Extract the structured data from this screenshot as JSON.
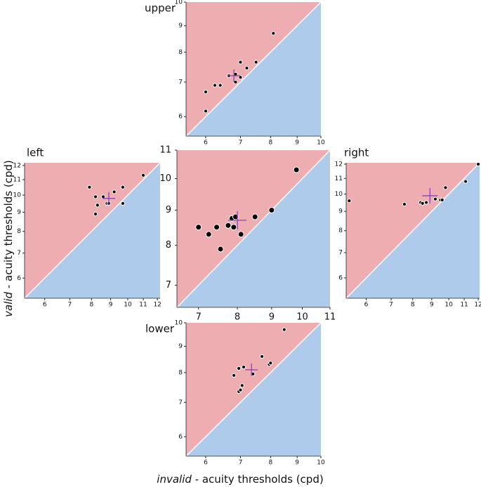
{
  "xlabel": {
    "emphasis": "invalid",
    "text": " - acuity thresholds (cpd)"
  },
  "ylabel": {
    "emphasis": "valid",
    "text": " - acuity thresholds (cpd)"
  },
  "chart_data": [
    {
      "type": "scatter",
      "title": "upper",
      "log_scale": true,
      "upper_color": "#eeadb0",
      "lower_color": "#aecbeb",
      "point_color": "#000000",
      "mean_color": "#8e44ad",
      "x": [
        6.0,
        6.0,
        6.25,
        6.4,
        6.65,
        6.85,
        6.85,
        7.0,
        7.2,
        7.0,
        7.5,
        8.1
      ],
      "y": [
        6.15,
        6.7,
        6.9,
        6.9,
        7.2,
        7.0,
        7.25,
        7.15,
        7.45,
        7.65,
        7.65,
        8.7
      ],
      "mean": {
        "x": 6.8,
        "y": 7.2
      },
      "xlim": [
        5.5,
        10
      ],
      "ylim": [
        5.5,
        10
      ],
      "xticks": [
        6,
        7,
        8,
        9,
        10
      ],
      "yticks": [
        6,
        7,
        8,
        9,
        10
      ]
    },
    {
      "type": "scatter",
      "title": "left",
      "log_scale": true,
      "upper_color": "#eeadb0",
      "lower_color": "#aecbeb",
      "point_color": "#000000",
      "mean_color": "#8e44ad",
      "x": [
        7.9,
        8.2,
        8.3,
        8.2,
        8.6,
        8.8,
        8.9,
        9.2,
        9.7,
        9.7,
        11.0
      ],
      "y": [
        10.5,
        9.9,
        9.4,
        8.9,
        9.9,
        9.5,
        9.5,
        10.2,
        10.5,
        9.5,
        11.3
      ],
      "mean": {
        "x": 8.9,
        "y": 9.8
      },
      "xlim": [
        5.3,
        12.2
      ],
      "ylim": [
        5.3,
        12.2
      ],
      "xticks": [
        6,
        7,
        8,
        9,
        10,
        11,
        12
      ],
      "yticks": [
        6,
        7,
        8,
        9,
        10,
        11,
        12
      ]
    },
    {
      "type": "scatter",
      "log_scale": true,
      "upper_color": "#eeadb0",
      "lower_color": "#aecbeb",
      "point_color": "#000000",
      "mean_color": "#8e44ad",
      "x": [
        7.0,
        7.25,
        7.55,
        7.45,
        7.75,
        7.85,
        7.9,
        7.95,
        8.1,
        8.5,
        9.0,
        9.8
      ],
      "y": [
        8.5,
        8.3,
        7.9,
        8.5,
        8.55,
        8.75,
        8.5,
        8.8,
        8.3,
        8.8,
        9.0,
        10.3
      ],
      "mean": {
        "x": 8.0,
        "y": 8.7
      },
      "xlim": [
        6.5,
        11
      ],
      "ylim": [
        6.5,
        11
      ],
      "xticks": [
        7,
        8,
        9,
        10,
        11
      ],
      "yticks": [
        7,
        8,
        9,
        10,
        11
      ]
    },
    {
      "type": "scatter",
      "title": "right",
      "log_scale": true,
      "upper_color": "#eeadb0",
      "lower_color": "#aecbeb",
      "point_color": "#000000",
      "mean_color": "#8e44ad",
      "x": [
        5.4,
        7.6,
        8.4,
        8.5,
        8.7,
        9.2,
        9.5,
        9.6,
        9.8,
        11.1,
        12.0
      ],
      "y": [
        9.6,
        9.4,
        9.5,
        9.45,
        9.5,
        9.7,
        9.65,
        9.65,
        10.4,
        10.8,
        12.0
      ],
      "mean": {
        "x": 8.9,
        "y": 9.9
      },
      "xlim": [
        5.3,
        12.1
      ],
      "ylim": [
        5.3,
        12.1
      ],
      "xticks": [
        6,
        7,
        8,
        9,
        10,
        11,
        12
      ],
      "yticks": [
        6,
        7,
        8,
        9,
        10,
        11,
        12
      ]
    },
    {
      "type": "scatter",
      "title": "lower",
      "log_scale": true,
      "upper_color": "#eeadb0",
      "lower_color": "#aecbeb",
      "point_color": "#000000",
      "mean_color": "#8e44ad",
      "x": [
        6.8,
        6.95,
        7.1,
        6.95,
        7.0,
        7.05,
        7.4,
        7.7,
        7.95,
        8.0,
        8.5
      ],
      "y": [
        7.9,
        8.15,
        8.2,
        7.35,
        7.4,
        7.55,
        7.95,
        8.6,
        8.3,
        8.35,
        9.7
      ],
      "mean": {
        "x": 7.35,
        "y": 8.1
      },
      "xlim": [
        5.5,
        10
      ],
      "ylim": [
        5.5,
        10
      ],
      "xticks": [
        6,
        7,
        8,
        9,
        10
      ],
      "yticks": [
        6,
        7,
        8,
        9,
        10
      ]
    }
  ]
}
